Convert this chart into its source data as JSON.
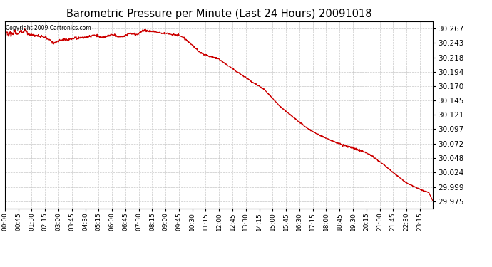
{
  "title": "Barometric Pressure per Minute (Last 24 Hours) 20091018",
  "copyright": "Copyright 2009 Cartronics.com",
  "line_color": "#cc0000",
  "bg_color": "#ffffff",
  "plot_bg_color": "#ffffff",
  "grid_color": "#c8c8c8",
  "yticks": [
    29.975,
    29.999,
    30.024,
    30.048,
    30.072,
    30.097,
    30.121,
    30.145,
    30.17,
    30.194,
    30.218,
    30.243,
    30.267
  ],
  "ylim": [
    29.963,
    30.279
  ],
  "xtick_labels": [
    "00:00",
    "00:45",
    "01:30",
    "02:15",
    "03:00",
    "03:45",
    "04:30",
    "05:15",
    "06:00",
    "06:45",
    "07:30",
    "08:15",
    "09:00",
    "09:45",
    "10:30",
    "11:15",
    "12:00",
    "12:45",
    "13:30",
    "14:15",
    "15:00",
    "15:45",
    "16:30",
    "17:15",
    "18:00",
    "18:45",
    "19:30",
    "20:15",
    "21:00",
    "21:45",
    "22:30",
    "23:15"
  ]
}
